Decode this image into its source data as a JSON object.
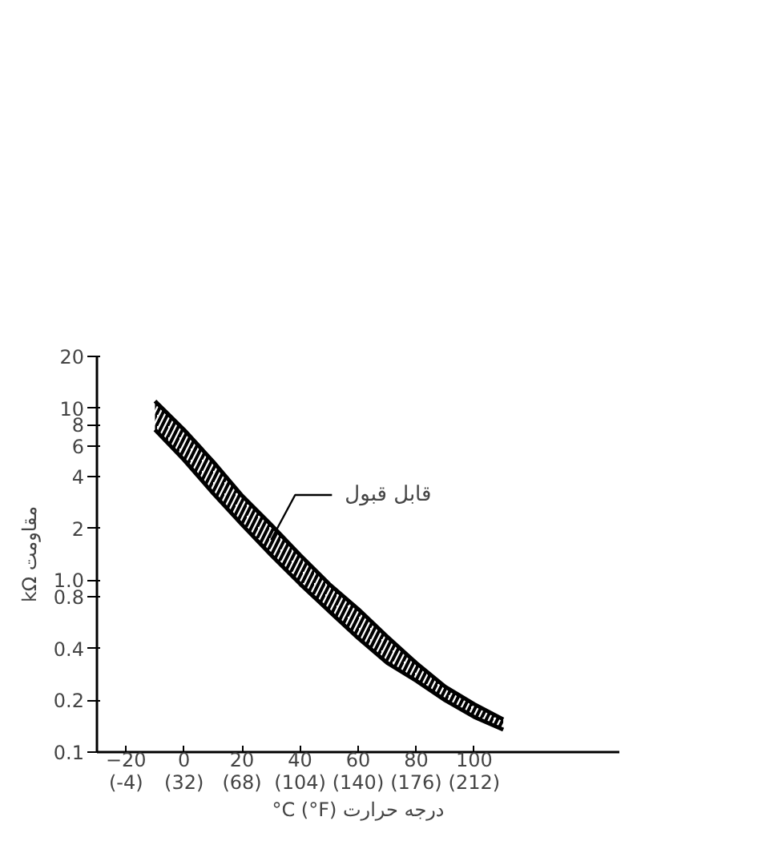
{
  "chart_data": {
    "type": "area",
    "xlabel": "°C (°F) درجه حرارت",
    "ylabel": "kΩ مقاومت",
    "log": "y",
    "grid": false,
    "xlim": [
      -30,
      150
    ],
    "ylim": [
      0.1,
      20
    ],
    "xticks": [
      -20,
      0,
      20,
      40,
      60,
      80,
      100
    ],
    "x2lim": [
      -22,
      302
    ],
    "x2ticks": [
      {
        "value": -4,
        "label": "(-4)"
      },
      {
        "value": 32,
        "label": "(32)"
      },
      {
        "value": 68,
        "label": "(68)"
      },
      {
        "value": 104,
        "label": "(104)"
      },
      {
        "value": 140,
        "label": "(140)"
      },
      {
        "value": 176,
        "label": "(176)"
      },
      {
        "value": 212,
        "label": "(212)"
      }
    ],
    "yticks": [
      0.1,
      0.2,
      0.4,
      0.8,
      {
        "value": 1,
        "label": "1.0"
      },
      2,
      4,
      6,
      8,
      10,
      20
    ],
    "series": [
      {
        "name": "قابل قبول",
        "color": "#000000",
        "x": [
          -10,
          0,
          10,
          20,
          30,
          40,
          50,
          60,
          70,
          80,
          90,
          100,
          110
        ],
        "values": [
          11,
          7.5,
          4.9,
          3.1,
          2.1,
          1.4,
          0.95,
          0.68,
          0.47,
          0.33,
          0.24,
          0.19,
          0.155
        ]
      },
      {
        "type": "line",
        "color": "#000000",
        "x": [
          -10,
          0,
          10,
          20,
          30,
          40,
          50,
          60,
          70,
          80,
          90,
          100,
          110
        ],
        "values": [
          7.5,
          5.0,
          3.2,
          2.1,
          1.4,
          0.95,
          0.66,
          0.46,
          0.33,
          0.26,
          0.2,
          0.16,
          0.135
        ]
      }
    ]
  }
}
